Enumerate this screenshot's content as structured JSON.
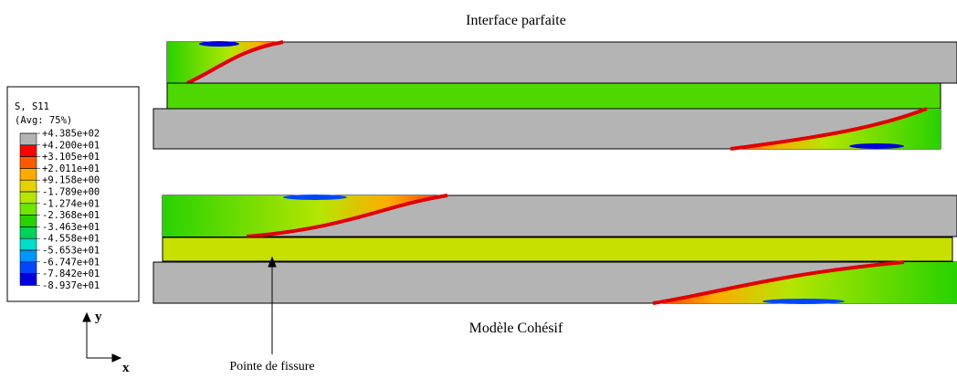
{
  "top_title": "Interface parfaite",
  "bottom_title": "Modèle Cohésif",
  "legend": {
    "title": "S, S11",
    "subtitle": "(Avg: 75%)",
    "labels": [
      "+4.385e+02",
      "+4.200e+01",
      "+3.105e+01",
      "+2.011e+01",
      "+9.158e+00",
      "-1.789e+00",
      "-1.274e+01",
      "-2.368e+01",
      "-3.463e+01",
      "-4.558e+01",
      "-5.653e+01",
      "-6.747e+01",
      "-7.842e+01",
      "-8.937e+01"
    ],
    "colors": [
      "#b4b4b4",
      "#ff0000",
      "#ff5a00",
      "#ffaa00",
      "#e6d200",
      "#b4e600",
      "#6ee600",
      "#28d200",
      "#00d25a",
      "#00dcc8",
      "#0096ff",
      "#0046ff",
      "#0000dc"
    ]
  },
  "axes": {
    "y": "y",
    "x": "x"
  },
  "annotation": "Pointe de fissure"
}
